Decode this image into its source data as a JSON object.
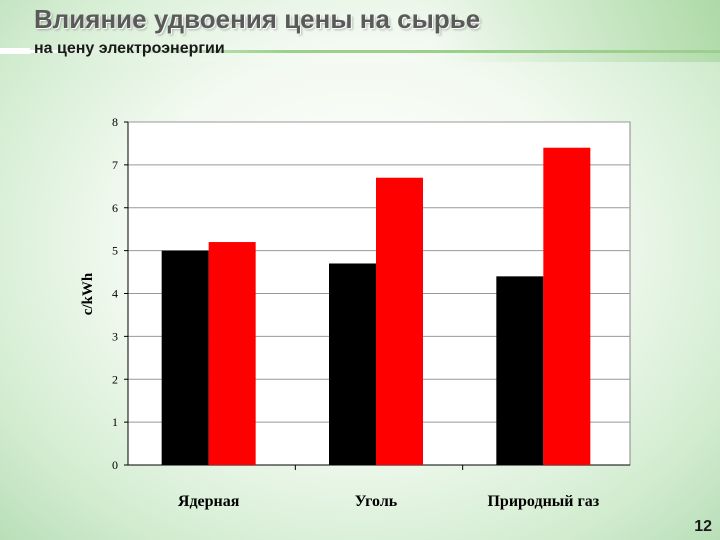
{
  "slide": {
    "title": "Влияние удвоения цены на сырье",
    "subtitle": "на цену электроэнергии",
    "page_number": "12"
  },
  "chart_data": {
    "type": "bar",
    "title": "",
    "xlabel": "",
    "ylabel": "c/kWh",
    "ylim": [
      0,
      8
    ],
    "yticks": [
      0,
      1,
      2,
      3,
      4,
      5,
      6,
      7,
      8
    ],
    "grid": true,
    "legend": "none",
    "categories": [
      "Ядерная",
      "Уголь",
      "Природный газ"
    ],
    "series": [
      {
        "values": [
          5.0,
          4.7,
          4.4
        ],
        "color": "#000000"
      },
      {
        "values": [
          5.2,
          6.7,
          7.4
        ],
        "color": "#ff0000"
      }
    ]
  }
}
